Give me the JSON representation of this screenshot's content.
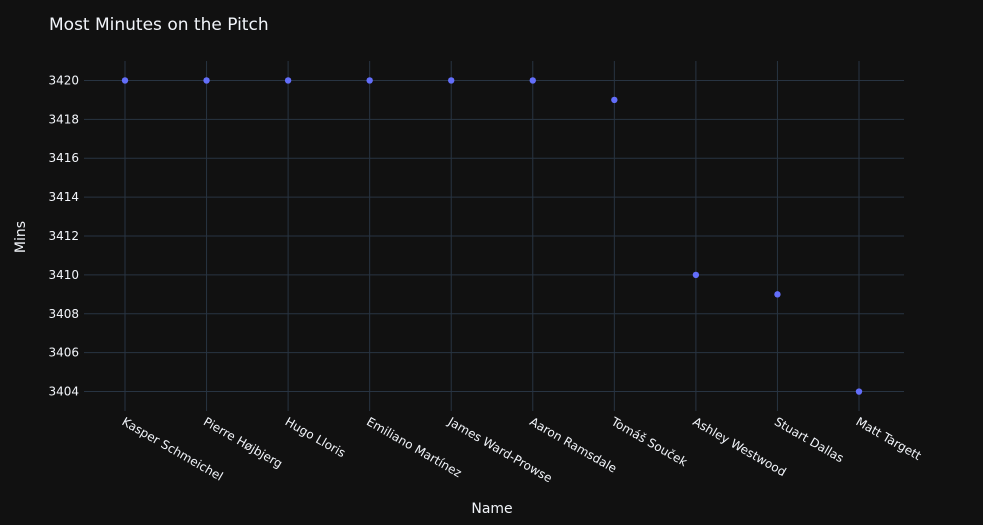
{
  "chart_data": {
    "type": "scatter",
    "title": "Most Minutes on the Pitch",
    "xlabel": "Name",
    "ylabel": "Mins",
    "categories": [
      "Kasper Schmeichel",
      "Pierre Højbjerg",
      "Hugo Lloris",
      "Emiliano Martínez",
      "James Ward-Prowse",
      "Aaron Ramsdale",
      "Tomáš Souček",
      "Ashley Westwood",
      "Stuart Dallas",
      "Matt Targett"
    ],
    "values": [
      3420,
      3420,
      3420,
      3420,
      3420,
      3420,
      3419,
      3410,
      3409,
      3404
    ],
    "yticks": [
      3404,
      3406,
      3408,
      3410,
      3412,
      3414,
      3416,
      3418,
      3420
    ],
    "ylim": [
      3403,
      3421
    ],
    "grid": true,
    "legend": "none",
    "colors": {
      "background": "#111111",
      "grid": "#283442",
      "marker": "#636efa",
      "text": "#f2f5fa"
    }
  }
}
